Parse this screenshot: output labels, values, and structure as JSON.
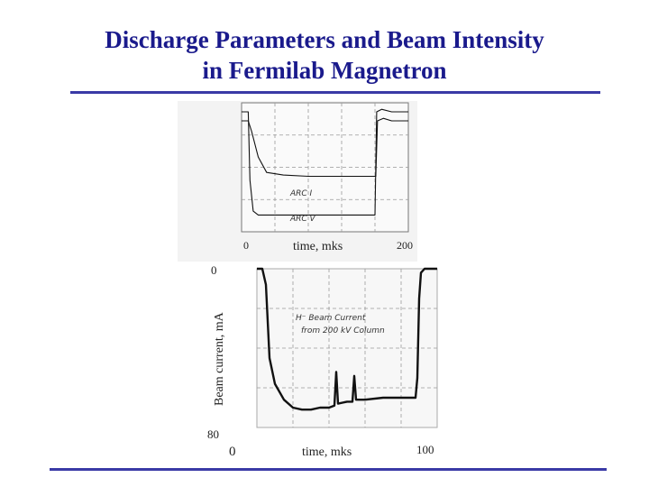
{
  "title": {
    "line1": "Discharge Parameters and Beam Intensity",
    "line2": "in Fermilab Magnetron"
  },
  "chart_data": [
    {
      "type": "line",
      "title": "",
      "xlabel": "time, mks",
      "x_ticks": [
        "0",
        "200"
      ],
      "xlim": [
        0,
        200
      ],
      "ylim": [
        0,
        1
      ],
      "grid": true,
      "annotations": [
        "ARC I",
        "ARC V"
      ],
      "series": [
        {
          "name": "ARC I",
          "x": [
            0,
            8,
            12,
            20,
            30,
            50,
            80,
            100,
            120,
            140,
            155,
            161,
            163,
            170,
            180,
            200
          ],
          "y": [
            0.86,
            0.86,
            0.78,
            0.58,
            0.46,
            0.44,
            0.43,
            0.43,
            0.43,
            0.43,
            0.43,
            0.43,
            0.86,
            0.88,
            0.86,
            0.86
          ]
        },
        {
          "name": "ARC V",
          "x": [
            0,
            8,
            10,
            14,
            20,
            40,
            80,
            120,
            150,
            160,
            162,
            168,
            180,
            200
          ],
          "y": [
            0.93,
            0.93,
            0.4,
            0.16,
            0.13,
            0.13,
            0.13,
            0.13,
            0.13,
            0.13,
            0.93,
            0.95,
            0.93,
            0.93
          ]
        }
      ]
    },
    {
      "type": "line",
      "title": "",
      "xlabel": "time, mks",
      "ylabel": "Beam current, mA",
      "x_ticks": [
        "0",
        "100"
      ],
      "y_ticks": [
        "0",
        "80"
      ],
      "xlim": [
        0,
        100
      ],
      "ylim": [
        80,
        0
      ],
      "grid": true,
      "annotations": [
        "H⁻ Beam Current",
        "from 200 kV Column"
      ],
      "series": [
        {
          "name": "H- Beam Current",
          "x": [
            0,
            3,
            5,
            7,
            10,
            15,
            20,
            25,
            30,
            35,
            40,
            43,
            44,
            45,
            50,
            53,
            54,
            55,
            60,
            70,
            80,
            88,
            89,
            90,
            91,
            93,
            100
          ],
          "y": [
            0,
            0,
            8,
            45,
            58,
            66,
            70,
            71,
            71,
            70,
            70,
            69,
            52,
            68,
            67,
            67,
            54,
            66,
            66,
            65,
            65,
            65,
            55,
            15,
            2,
            0,
            0
          ]
        }
      ]
    }
  ]
}
